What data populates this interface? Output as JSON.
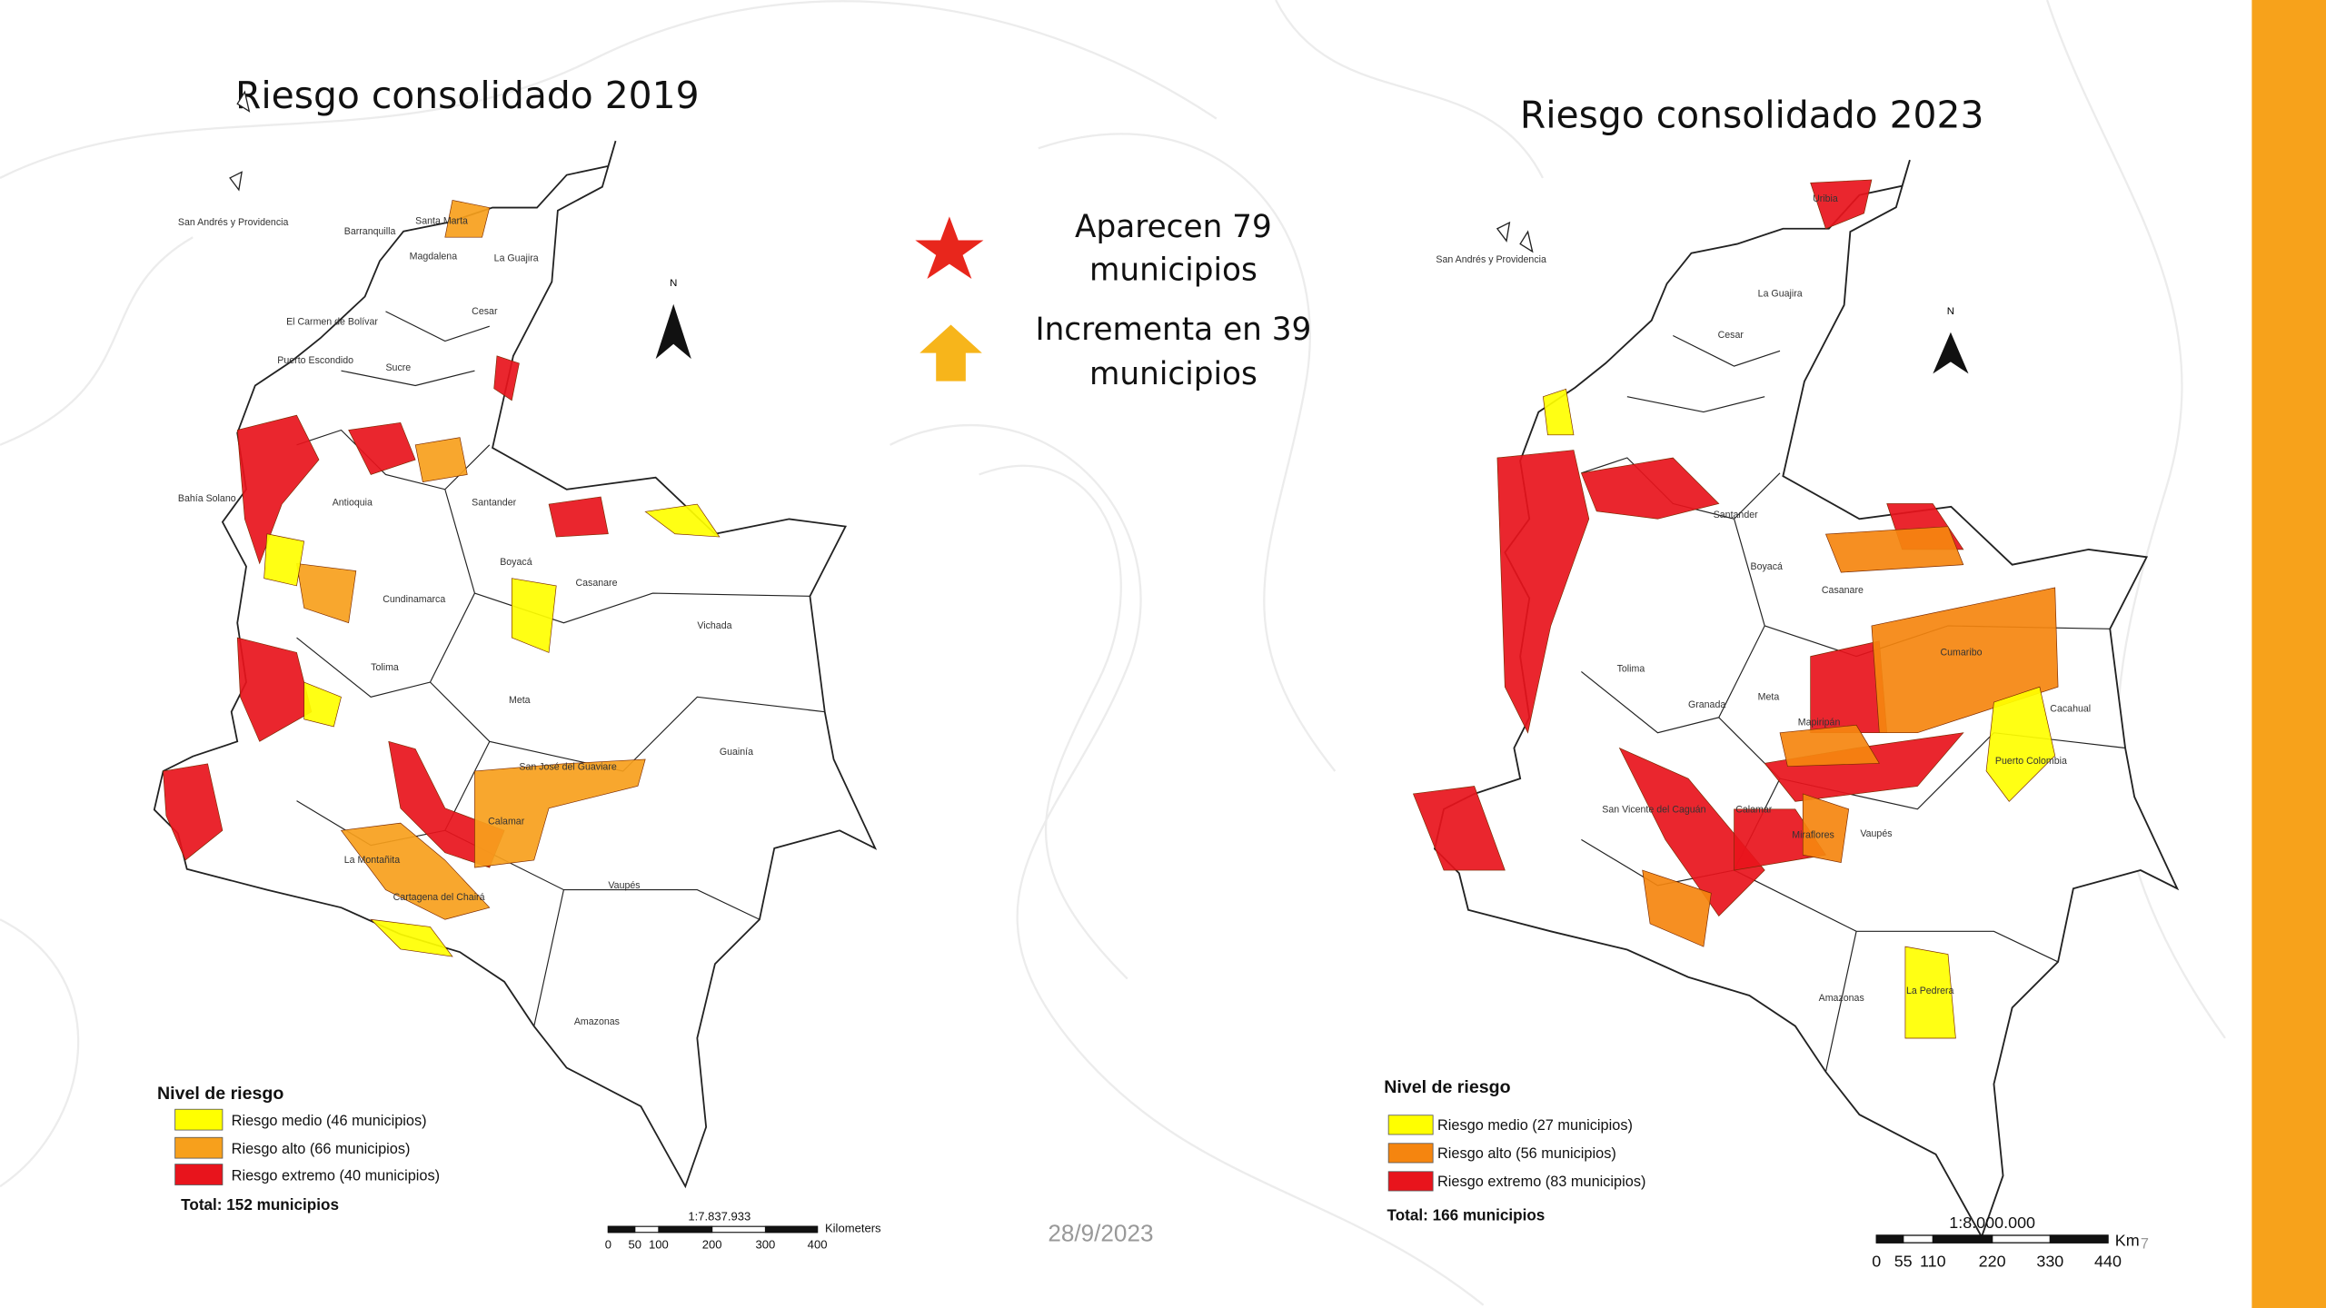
{
  "slide": {
    "annotations": [
      {
        "lines": [
          "Aparecen 79",
          "municipios"
        ]
      },
      {
        "lines": [
          "Incrementa en 39",
          "municipios"
        ]
      }
    ],
    "date": "28/9/2023",
    "page_number": "7",
    "maps": [
      {
        "title": "Riesgo consolidado 2019",
        "north": "N",
        "legend": {
          "title": "Nivel de riesgo",
          "items": [
            {
              "label": "Riesgo medio (46 municipios)",
              "color": "#ffff00"
            },
            {
              "label": "Riesgo alto (66 municipios)",
              "color": "#f7a01c"
            },
            {
              "label": "Riesgo extremo (40 municipios)",
              "color": "#e8141c"
            }
          ],
          "total": "Total: 152 municipios"
        },
        "scale": {
          "ratio": "1:7.837.933",
          "unit": "Kilometers",
          "ticks": [
            "0",
            "50",
            "100",
            "200",
            "300",
            "400"
          ]
        },
        "places": [
          "San Andrés y Providencia",
          "Barranquilla",
          "Santa Marta",
          "La Guajira",
          "Magdalena",
          "Cesar",
          "El Carmen de Bolívar",
          "Puerto Escondido",
          "Sucre",
          "Bahía Solano",
          "Antioquia",
          "Santander",
          "Boyacá",
          "Casanare",
          "Vichada",
          "Cundinamarca",
          "Meta",
          "Tolima",
          "Guainía",
          "Calamar",
          "San José del Guaviare",
          "Vaupés",
          "Amazonas",
          "La Montañita",
          "Cartagena del Chairá"
        ]
      },
      {
        "title": "Riesgo consolidado 2023",
        "north": "N",
        "legend": {
          "title": "Nivel de riesgo",
          "items": [
            {
              "label": "Riesgo medio (27 municipios)",
              "color": "#ffff00"
            },
            {
              "label": "Riesgo alto (56 municipios)",
              "color": "#f5850f"
            },
            {
              "label": "Riesgo extremo (83 municipios)",
              "color": "#e8141c"
            }
          ],
          "total": "Total: 166 municipios"
        },
        "scale": {
          "ratio": "1:8.000.000",
          "unit": "Km",
          "ticks": [
            "0",
            "55",
            "110",
            "220",
            "330",
            "440"
          ]
        },
        "places": [
          "San Andrés y Providencia",
          "Uribia",
          "La Guajira",
          "Cesar",
          "Santander",
          "Boyacá",
          "Casanare",
          "Cumaribo",
          "Meta",
          "Tolima",
          "Granada",
          "Mapiripán",
          "Puerto Colombia",
          "Cacahual",
          "Miraflores",
          "Vaupés",
          "Amazonas",
          "La Pedrera",
          "San Vicente del Caguán",
          "Calamar"
        ]
      }
    ]
  }
}
